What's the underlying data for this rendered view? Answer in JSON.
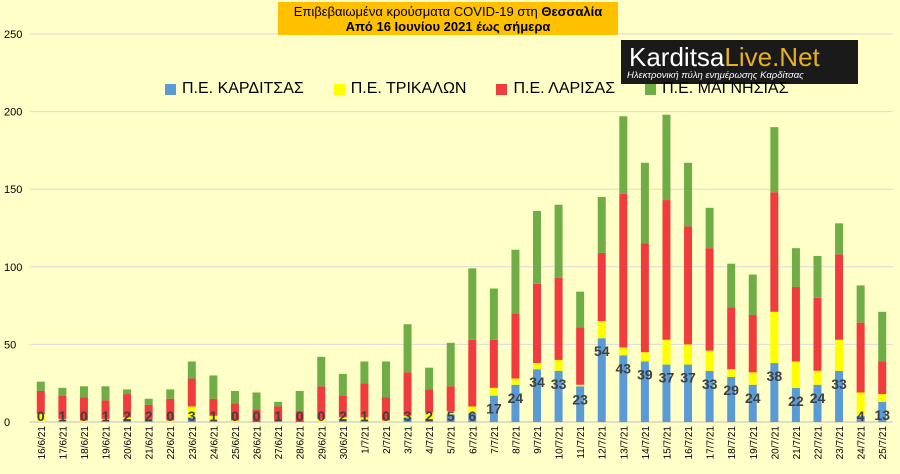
{
  "header": {
    "title_line1_prefix": "Επιβεβαιωμένα κρούσματα COVID-19 στη ",
    "title_line1_bold": "Θεσσαλία",
    "title_line2": "Από 16 Ιουνίου 2021 έως σήμερα"
  },
  "logo": {
    "name_part1": "Karditsa",
    "name_part2": "Live.Net",
    "tagline": "Ηλεκτρονική πύλη ενημέρωσης Καρδίτσας"
  },
  "colors": {
    "background": "#ffffc8",
    "karditsa": "#5b9bd5",
    "trikala": "#ffff00",
    "larisa": "#f03c3c",
    "magnisia": "#70ad47",
    "grid": "#d9d9d9"
  },
  "chart_data": {
    "type": "bar",
    "stacked": true,
    "ylim": [
      0,
      250
    ],
    "yticks": [
      0,
      50,
      100,
      150,
      200,
      250
    ],
    "grid": true,
    "legend_position": "top",
    "categories": [
      "16/6/21",
      "17/6/21",
      "18/6/21",
      "19/6/21",
      "20/6/21",
      "21/6/21",
      "22/6/21",
      "23/6/21",
      "24/6/21",
      "25/6/21",
      "26/6/21",
      "27/6/21",
      "28/6/21",
      "29/6/21",
      "30/6/21",
      "1/7/21",
      "2/7/21",
      "3/7/21",
      "4/7/21",
      "5/7/21",
      "6/7/21",
      "7/7/21",
      "8/7/21",
      "9/7/21",
      "10/7/21",
      "11/7/21",
      "12/7/21",
      "13/7/21",
      "14/7/21",
      "15/7/21",
      "16/7/21",
      "17/7/21",
      "18/7/21",
      "19/7/21",
      "20/7/21",
      "21/7/21",
      "22/7/21",
      "23/7/21",
      "24/7/21",
      "25/7/21"
    ],
    "series": [
      {
        "name": "Π.Ε. ΚΑΡΔΙΤΣΑΣ",
        "values": [
          0,
          1,
          0,
          1,
          2,
          2,
          0,
          3,
          1,
          0,
          0,
          1,
          0,
          0,
          2,
          1,
          0,
          3,
          2,
          5,
          6,
          17,
          24,
          34,
          33,
          23,
          54,
          43,
          39,
          37,
          37,
          33,
          29,
          24,
          38,
          22,
          24,
          33,
          4,
          13
        ]
      },
      {
        "name": "Π.Ε. ΤΡΙΚΑΛΩΝ",
        "values": [
          5,
          1,
          1,
          1,
          1,
          0,
          1,
          7,
          3,
          1,
          0,
          0,
          0,
          2,
          1,
          2,
          1,
          1,
          4,
          2,
          4,
          5,
          4,
          4,
          7,
          1,
          11,
          5,
          6,
          16,
          13,
          13,
          5,
          8,
          33,
          17,
          9,
          20,
          15,
          5
        ]
      },
      {
        "name": "Π.Ε. ΛΑΡΙΣΑΣ",
        "values": [
          15,
          15,
          15,
          12,
          15,
          9,
          14,
          18,
          11,
          11,
          8,
          9,
          7,
          21,
          14,
          22,
          15,
          28,
          15,
          16,
          43,
          31,
          42,
          51,
          53,
          37,
          44,
          99,
          70,
          90,
          76,
          66,
          40,
          37,
          77,
          48,
          47,
          55,
          45,
          21
        ]
      },
      {
        "name": "Π.Ε. ΜΑΓΝΗΣΙΑΣ",
        "values": [
          6,
          5,
          7,
          9,
          3,
          4,
          6,
          11,
          15,
          8,
          11,
          3,
          13,
          19,
          14,
          14,
          23,
          31,
          14,
          28,
          46,
          33,
          41,
          47,
          47,
          23,
          36,
          50,
          52,
          55,
          41,
          26,
          28,
          26,
          42,
          25,
          27,
          20,
          24,
          32
        ]
      }
    ],
    "data_labels_series": "Π.Ε. ΚΑΡΔΙΤΣΑΣ"
  }
}
